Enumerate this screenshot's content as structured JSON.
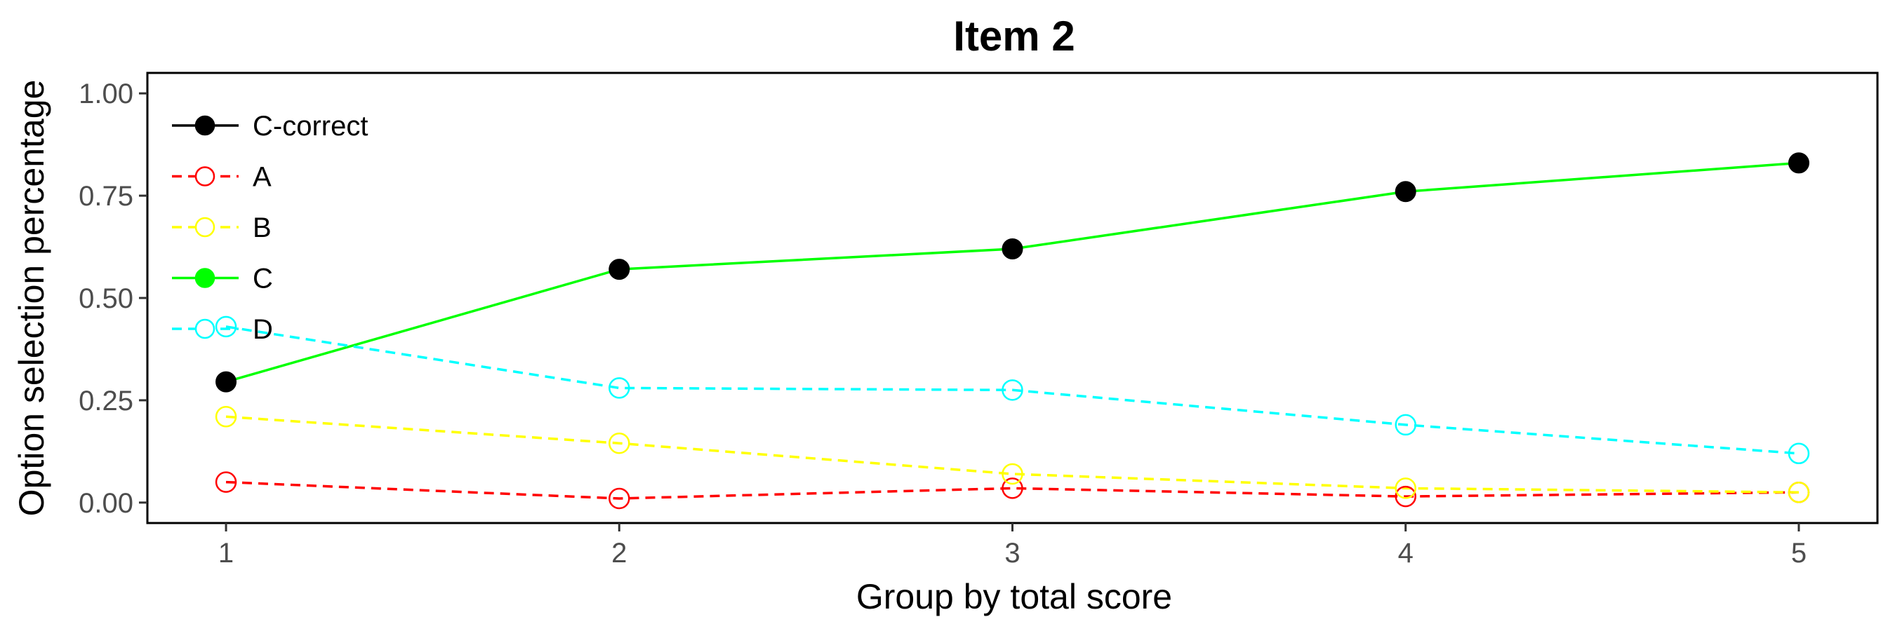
{
  "chart_data": {
    "type": "line",
    "title": "Item 2",
    "xlabel": "Group by total score",
    "ylabel": "Option selection percentage",
    "x": [
      1,
      2,
      3,
      4,
      5
    ],
    "x_ticks": [
      "1",
      "2",
      "3",
      "4",
      "5"
    ],
    "y_ticks": [
      "0.00",
      "0.25",
      "0.50",
      "0.75",
      "1.00"
    ],
    "xlim": [
      0.8,
      5.2
    ],
    "ylim": [
      -0.05,
      1.05
    ],
    "grid": false,
    "legend_position": "top-left",
    "series": [
      {
        "name": "A",
        "values": [
          0.05,
          0.01,
          0.035,
          0.015,
          0.025
        ],
        "color": "#ff0000",
        "dashed": true,
        "filled": false
      },
      {
        "name": "B",
        "values": [
          0.21,
          0.145,
          0.07,
          0.035,
          0.025
        ],
        "color": "#ffff00",
        "dashed": true,
        "filled": false
      },
      {
        "name": "C",
        "values": [
          0.295,
          0.57,
          0.62,
          0.76,
          0.83
        ],
        "color": "#00ff00",
        "dashed": false,
        "filled": true
      },
      {
        "name": "D",
        "values": [
          0.43,
          0.28,
          0.275,
          0.19,
          0.12
        ],
        "color": "#00ffff",
        "dashed": true,
        "filled": false
      }
    ],
    "correct_marker": {
      "label": "C-correct",
      "series": "C",
      "color": "#000000"
    },
    "legend_items": [
      {
        "label": "C-correct",
        "color": "#000000",
        "dashed": false,
        "filled": true
      },
      {
        "label": "A",
        "color": "#ff0000",
        "dashed": true,
        "filled": false
      },
      {
        "label": "B",
        "color": "#ffff00",
        "dashed": true,
        "filled": false
      },
      {
        "label": "C",
        "color": "#00ff00",
        "dashed": false,
        "filled": true
      },
      {
        "label": "D",
        "color": "#00ffff",
        "dashed": true,
        "filled": false
      }
    ]
  }
}
